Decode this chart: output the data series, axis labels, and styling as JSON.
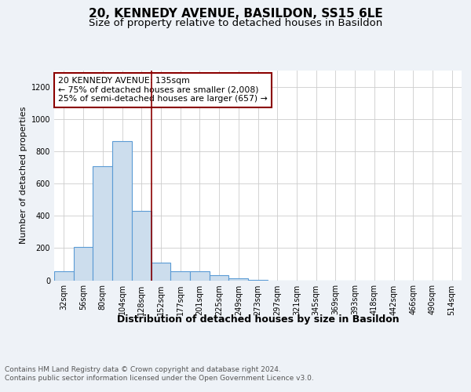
{
  "title": "20, KENNEDY AVENUE, BASILDON, SS15 6LE",
  "subtitle": "Size of property relative to detached houses in Basildon",
  "xlabel": "Distribution of detached houses by size in Basildon",
  "ylabel": "Number of detached properties",
  "categories": [
    "32sqm",
    "56sqm",
    "80sqm",
    "104sqm",
    "128sqm",
    "152sqm",
    "177sqm",
    "201sqm",
    "225sqm",
    "249sqm",
    "273sqm",
    "297sqm",
    "321sqm",
    "345sqm",
    "369sqm",
    "393sqm",
    "418sqm",
    "442sqm",
    "466sqm",
    "490sqm",
    "514sqm"
  ],
  "values": [
    55,
    207,
    707,
    862,
    430,
    107,
    55,
    55,
    32,
    10,
    2,
    0,
    0,
    0,
    0,
    0,
    0,
    0,
    0,
    0,
    0
  ],
  "bar_color": "#ccdded",
  "bar_edge_color": "#5b9bd5",
  "vline_x": 4.5,
  "vline_color": "#8b0000",
  "annotation_text": "20 KENNEDY AVENUE: 135sqm\n← 75% of detached houses are smaller (2,008)\n25% of semi-detached houses are larger (657) →",
  "annotation_box_color": "white",
  "annotation_box_edge": "#8b0000",
  "footer": "Contains HM Land Registry data © Crown copyright and database right 2024.\nContains public sector information licensed under the Open Government Licence v3.0.",
  "ylim": [
    0,
    1300
  ],
  "yticks": [
    0,
    200,
    400,
    600,
    800,
    1000,
    1200
  ],
  "background_color": "#eef2f7",
  "plot_bg_color": "white",
  "title_fontsize": 11,
  "subtitle_fontsize": 9.5,
  "xlabel_fontsize": 9,
  "ylabel_fontsize": 8,
  "tick_fontsize": 7,
  "footer_fontsize": 6.5,
  "annotation_fontsize": 7.8
}
